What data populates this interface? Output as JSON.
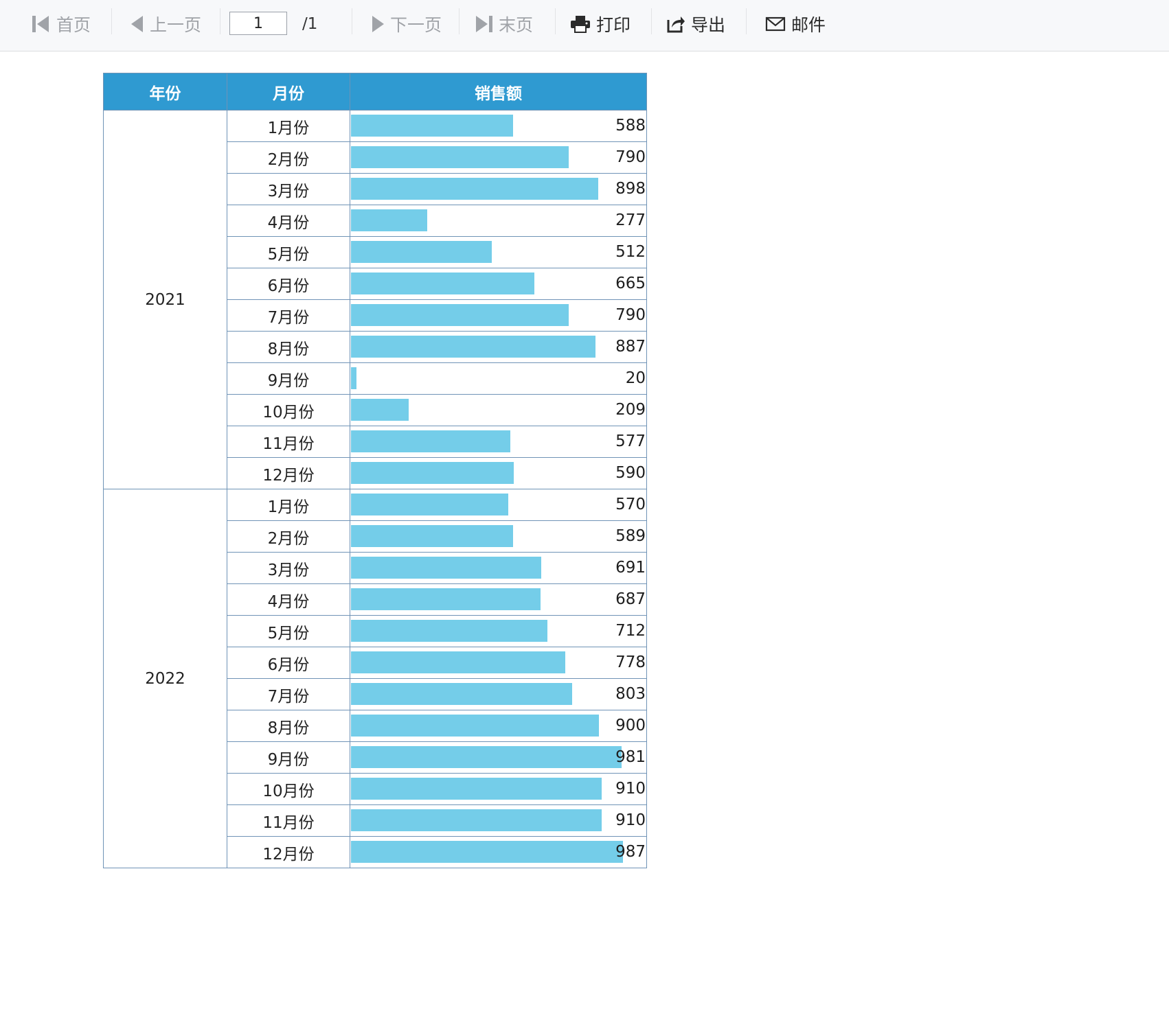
{
  "toolbar": {
    "first_label": "首页",
    "prev_label": "上一页",
    "page_value": "1",
    "page_total": "/1",
    "next_label": "下一页",
    "last_label": "末页",
    "print_label": "打印",
    "export_label": "导出",
    "email_label": "邮件",
    "disabled_color": "#a0a3a8"
  },
  "table": {
    "headers": {
      "year": "年份",
      "month": "月份",
      "sales": "销售额"
    },
    "header_bg": "#2f9ad1",
    "bar_color": "#74cde9",
    "bar_max": 987
  },
  "chart_data": {
    "type": "table",
    "columns": [
      "年份",
      "月份",
      "销售额"
    ],
    "groups": [
      {
        "year": "2021",
        "rows": [
          {
            "month": "1月份",
            "sales": 588
          },
          {
            "month": "2月份",
            "sales": 790
          },
          {
            "month": "3月份",
            "sales": 898
          },
          {
            "month": "4月份",
            "sales": 277
          },
          {
            "month": "5月份",
            "sales": 512
          },
          {
            "month": "6月份",
            "sales": 665
          },
          {
            "month": "7月份",
            "sales": 790
          },
          {
            "month": "8月份",
            "sales": 887
          },
          {
            "month": "9月份",
            "sales": 20
          },
          {
            "month": "10月份",
            "sales": 209
          },
          {
            "month": "11月份",
            "sales": 577
          },
          {
            "month": "12月份",
            "sales": 590
          }
        ]
      },
      {
        "year": "2022",
        "rows": [
          {
            "month": "1月份",
            "sales": 570
          },
          {
            "month": "2月份",
            "sales": 589
          },
          {
            "month": "3月份",
            "sales": 691
          },
          {
            "month": "4月份",
            "sales": 687
          },
          {
            "month": "5月份",
            "sales": 712
          },
          {
            "month": "6月份",
            "sales": 778
          },
          {
            "month": "7月份",
            "sales": 803
          },
          {
            "month": "8月份",
            "sales": 900
          },
          {
            "month": "9月份",
            "sales": 981
          },
          {
            "month": "10月份",
            "sales": 910
          },
          {
            "month": "11月份",
            "sales": 910
          },
          {
            "month": "12月份",
            "sales": 987
          }
        ]
      }
    ]
  }
}
